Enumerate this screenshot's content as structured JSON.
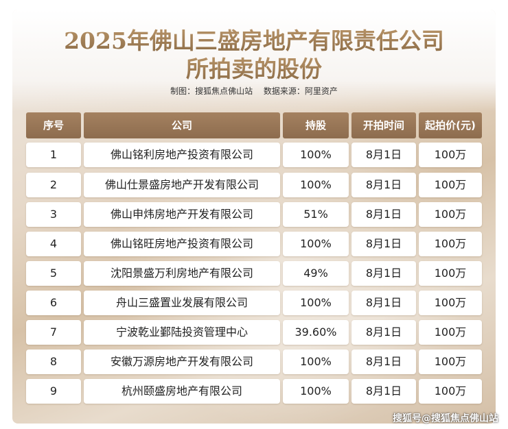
{
  "title": {
    "line1": "2025年佛山三盛房地产有限责任公司",
    "line2": "所拍卖的股份"
  },
  "credits": {
    "made_by": "制图：搜狐焦点佛山站",
    "source": "数据来源：阿里资产"
  },
  "table": {
    "headers": [
      "序号",
      "公司",
      "持股",
      "开拍时间",
      "起拍价(元)"
    ],
    "rows": [
      [
        "1",
        "佛山铭利房地产投资有限公司",
        "100%",
        "8月1日",
        "100万"
      ],
      [
        "2",
        "佛山仕景盛房地产开发有限公司",
        "100%",
        "8月1日",
        "100万"
      ],
      [
        "3",
        "佛山申炜房地产开发有限公司",
        "51%",
        "8月1日",
        "100万"
      ],
      [
        "4",
        "佛山铭旺房地产投资有限公司",
        "100%",
        "8月1日",
        "100万"
      ],
      [
        "5",
        "沈阳景盛万利房地产有限公司",
        "49%",
        "8月1日",
        "100万"
      ],
      [
        "6",
        "舟山三盛置业发展有限公司",
        "100%",
        "8月1日",
        "100万"
      ],
      [
        "7",
        "宁波乾业鄞陆投资管理中心",
        "39.60%",
        "8月1日",
        "100万"
      ],
      [
        "8",
        "安徽万源房地产开发有限公司",
        "100%",
        "8月1日",
        "100万"
      ],
      [
        "9",
        "杭州颐盛房地产有限公司",
        "100%",
        "8月1日",
        "100万"
      ]
    ]
  },
  "watermark": "搜狐号@搜狐焦点佛山站"
}
